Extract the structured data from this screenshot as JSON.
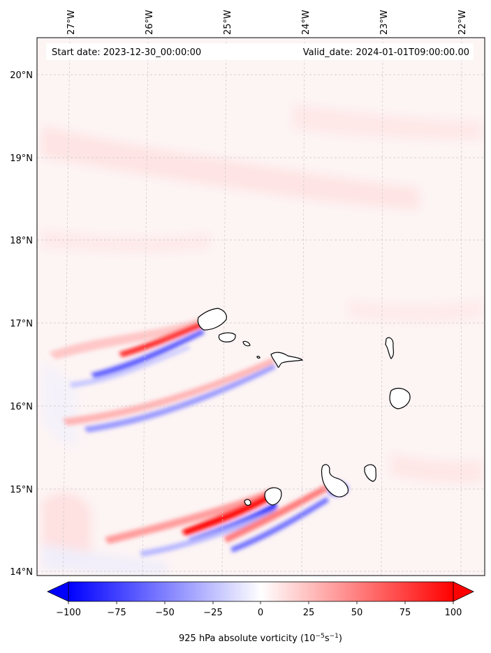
{
  "map": {
    "start_date": "Start date: 2023-12-30_00:00:00",
    "valid_date": "Valid_date: 2024-01-01T09:00:00.00",
    "lon_ticks": [
      "27°W",
      "26°W",
      "25°W",
      "24°W",
      "23°W",
      "22°W"
    ],
    "lat_ticks": [
      "20°N",
      "19°N",
      "18°N",
      "17°N",
      "16°N",
      "15°N",
      "14°N"
    ],
    "colorbar": {
      "ticks": [
        "−100",
        "−75",
        "−50",
        "−25",
        "0",
        "25",
        "50",
        "75",
        "100"
      ],
      "label_prefix": "925 hPa absolute vorticity (10",
      "label_exp1": "−5",
      "label_mid": "s",
      "label_exp2": "−1",
      "label_suffix": ")"
    },
    "colors": {
      "negative": "#0000ff",
      "positive": "#ff0000",
      "neutral": "#ffffff"
    }
  }
}
